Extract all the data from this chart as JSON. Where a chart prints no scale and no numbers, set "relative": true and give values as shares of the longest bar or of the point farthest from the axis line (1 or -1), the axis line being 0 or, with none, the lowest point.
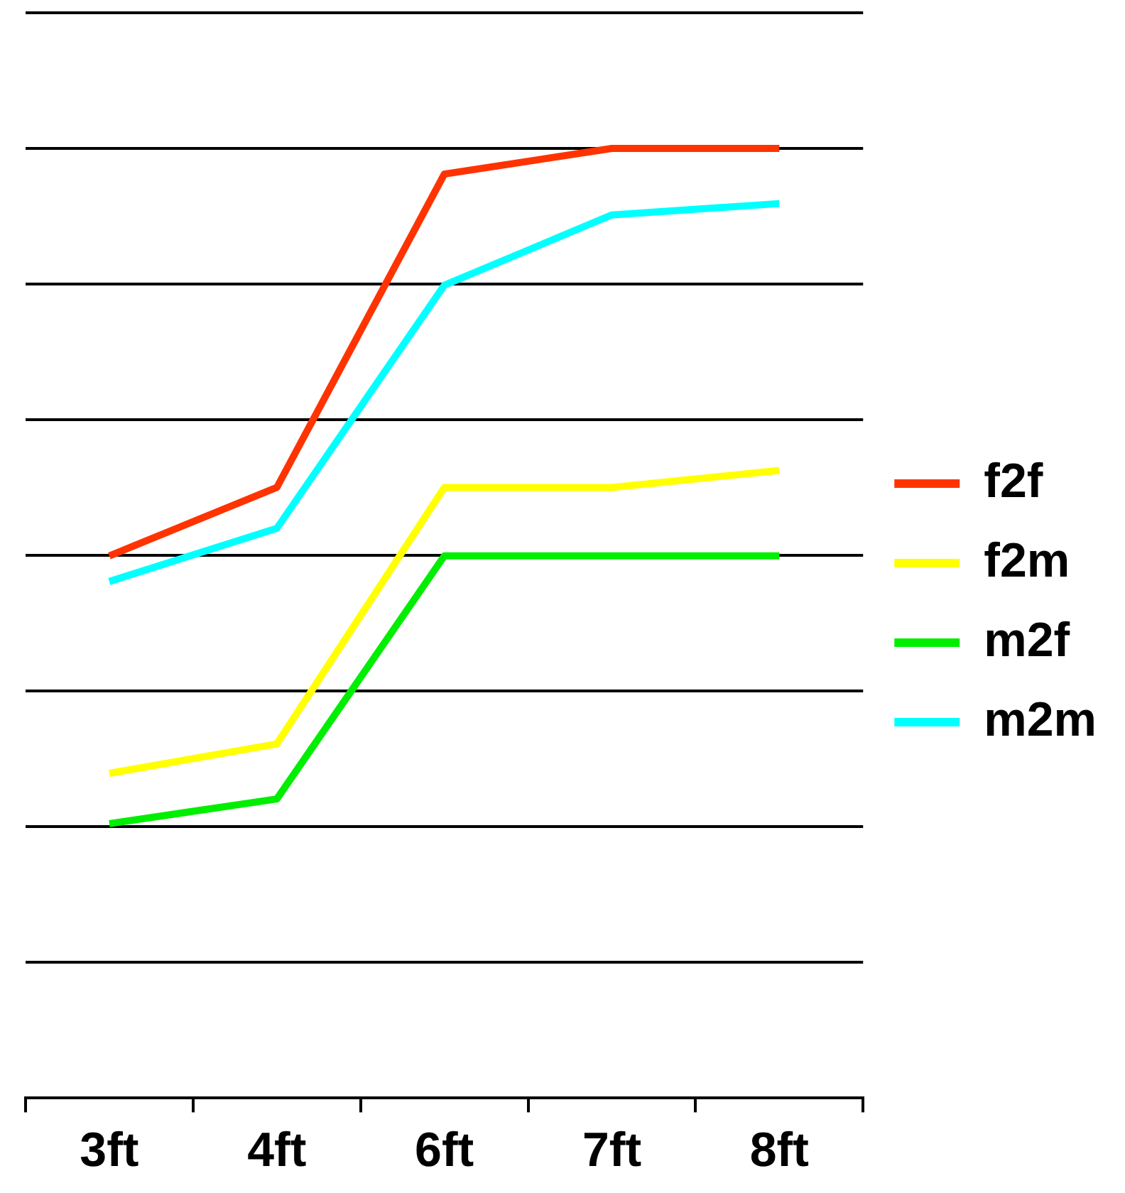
{
  "chart_data": {
    "type": "line",
    "relative": true,
    "grid": "y",
    "legend": "right",
    "marker": "none",
    "line_style": "solid",
    "categories": [
      "3ft",
      "4ft",
      "6ft",
      "7ft",
      "8ft"
    ],
    "series": [
      {
        "name": "f2f",
        "color": "#ff3300",
        "values": [
          0.571,
          0.643,
          0.973,
          1,
          1
        ]
      },
      {
        "name": "f2m",
        "color": "#ffff00",
        "values": [
          0.342,
          0.373,
          0.643,
          0.643,
          0.661
        ]
      },
      {
        "name": "m2f",
        "color": "#00ee00",
        "values": [
          0.289,
          0.315,
          0.571,
          0.571,
          0.571
        ]
      },
      {
        "name": "m2m",
        "color": "#00ffff",
        "values": [
          0.544,
          0.6,
          0.856,
          0.93,
          0.942
        ]
      }
    ]
  }
}
